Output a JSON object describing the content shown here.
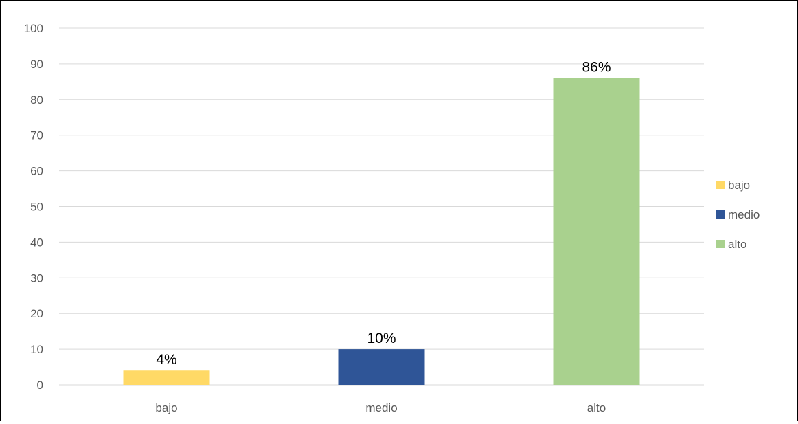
{
  "chart_data": {
    "type": "bar",
    "categories": [
      "bajo",
      "medio",
      "alto"
    ],
    "values": [
      4,
      10,
      86
    ],
    "data_labels": [
      "4%",
      "10%",
      "86%"
    ],
    "colors": [
      "#FFD966",
      "#2F5597",
      "#A9D18E"
    ],
    "title": "",
    "xlabel": "",
    "ylabel": "",
    "ylim": [
      0,
      100
    ],
    "yticks": [
      0,
      10,
      20,
      30,
      40,
      50,
      60,
      70,
      80,
      90,
      100
    ],
    "grid": true,
    "legend": {
      "placement": "right",
      "entries": [
        "bajo",
        "medio",
        "alto"
      ]
    }
  }
}
